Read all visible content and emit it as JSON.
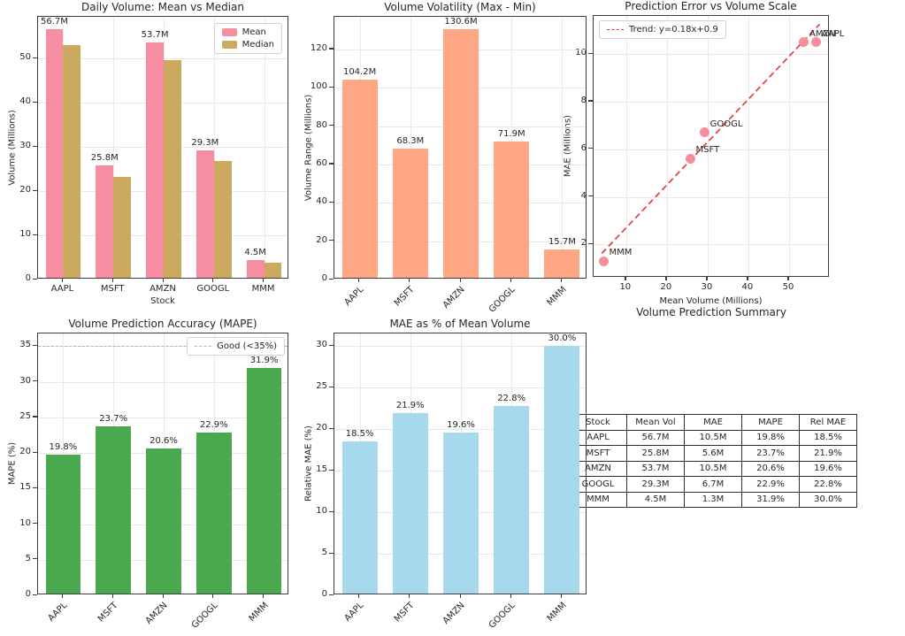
{
  "chart_data": [
    {
      "type": "bar",
      "variant": "grouped",
      "title": "Daily Volume: Mean vs Median",
      "xlabel": "Stock",
      "ylabel": "Volume (Millions)",
      "categories": [
        "AAPL",
        "MSFT",
        "AMZN",
        "GOOGL",
        "MMM"
      ],
      "series": [
        {
          "name": "Mean",
          "color": "#f78da1",
          "values": [
            56.7,
            25.8,
            53.7,
            29.3,
            4.5
          ],
          "labels": [
            "56.7M",
            "25.8M",
            "53.7M",
            "29.3M",
            "4.5M"
          ]
        },
        {
          "name": "Median",
          "color": "#cba95f",
          "values": [
            53.0,
            23.3,
            49.7,
            26.8,
            3.9
          ]
        }
      ],
      "ylim": [
        0,
        59.5
      ],
      "yticks": [
        0,
        10,
        20,
        30,
        40,
        50
      ],
      "legend_position": "upper right",
      "grid": true
    },
    {
      "type": "bar",
      "title": "Volume Volatility (Max - Min)",
      "xlabel": "",
      "ylabel": "Volume Range (Millions)",
      "categories": [
        "AAPL",
        "MSFT",
        "AMZN",
        "GOOGL",
        "MMM"
      ],
      "values": [
        104.2,
        68.3,
        130.6,
        71.9,
        15.7
      ],
      "labels": [
        "104.2M",
        "68.3M",
        "130.6M",
        "71.9M",
        "15.7M"
      ],
      "color": "#ffa684",
      "ylim": [
        0,
        137
      ],
      "yticks": [
        0,
        20,
        40,
        60,
        80,
        100,
        120
      ],
      "xtick_rotation": 45,
      "grid": true
    },
    {
      "type": "scatter",
      "title": "Prediction Error vs Volume Scale",
      "xlabel": "Mean Volume (Millions)",
      "ylabel": "MAE (Millions)",
      "points": [
        {
          "label": "AAPL",
          "x": 56.7,
          "y": 10.5
        },
        {
          "label": "MSFT",
          "x": 25.8,
          "y": 5.6
        },
        {
          "label": "AMZN",
          "x": 53.7,
          "y": 10.5
        },
        {
          "label": "GOOGL",
          "x": 29.3,
          "y": 6.7
        },
        {
          "label": "MMM",
          "x": 4.5,
          "y": 1.3
        }
      ],
      "point_color": "#f58f9c",
      "trend": {
        "label": "Trend: y=0.18x+0.9",
        "slope": 0.18,
        "intercept": 0.9,
        "color": "#e83c3c",
        "style": "dashed",
        "x_start": 4,
        "x_end": 57.5
      },
      "xlim": [
        2,
        60
      ],
      "ylim": [
        0.6,
        11.6
      ],
      "xticks": [
        10,
        20,
        30,
        40,
        50
      ],
      "yticks": [
        2,
        4,
        6,
        8,
        10
      ],
      "legend_position": "upper left",
      "grid": true
    },
    {
      "type": "bar",
      "title": "Volume Prediction Accuracy (MAPE)",
      "xlabel": "",
      "ylabel": "MAPE (%)",
      "categories": [
        "AAPL",
        "MSFT",
        "AMZN",
        "GOOGL",
        "MMM"
      ],
      "values": [
        19.8,
        23.7,
        20.6,
        22.9,
        31.9
      ],
      "labels": [
        "19.8%",
        "23.7%",
        "20.6%",
        "22.9%",
        "31.9%"
      ],
      "color": "#4aa94f",
      "threshold": {
        "value": 35,
        "label": "Good (<35%)",
        "color": "#8fcf8f",
        "style": "dashed"
      },
      "ylim": [
        0,
        36.8
      ],
      "yticks": [
        0,
        5,
        10,
        15,
        20,
        25,
        30,
        35
      ],
      "xtick_rotation": 45,
      "legend_position": "upper right",
      "grid": true
    },
    {
      "type": "bar",
      "title": "MAE as % of Mean Volume",
      "xlabel": "",
      "ylabel": "Relative MAE (%)",
      "categories": [
        "AAPL",
        "MSFT",
        "AMZN",
        "GOOGL",
        "MMM"
      ],
      "values": [
        18.5,
        21.9,
        19.6,
        22.8,
        30.0
      ],
      "labels": [
        "18.5%",
        "21.9%",
        "19.6%",
        "22.8%",
        "30.0%"
      ],
      "color": "#a6d9eb",
      "ylim": [
        0,
        31.5
      ],
      "yticks": [
        0,
        5,
        10,
        15,
        20,
        25,
        30
      ],
      "xtick_rotation": 45,
      "grid": true
    },
    {
      "type": "table",
      "title": "Volume Prediction Summary",
      "headers": [
        "Stock",
        "Mean Vol",
        "MAE",
        "MAPE",
        "Rel MAE"
      ],
      "rows": [
        [
          "AAPL",
          "56.7M",
          "10.5M",
          "19.8%",
          "18.5%"
        ],
        [
          "MSFT",
          "25.8M",
          "5.6M",
          "23.7%",
          "21.9%"
        ],
        [
          "AMZN",
          "53.7M",
          "10.5M",
          "20.6%",
          "19.6%"
        ],
        [
          "GOOGL",
          "29.3M",
          "6.7M",
          "22.9%",
          "22.8%"
        ],
        [
          "MMM",
          "4.5M",
          "1.3M",
          "31.9%",
          "30.0%"
        ]
      ]
    }
  ]
}
